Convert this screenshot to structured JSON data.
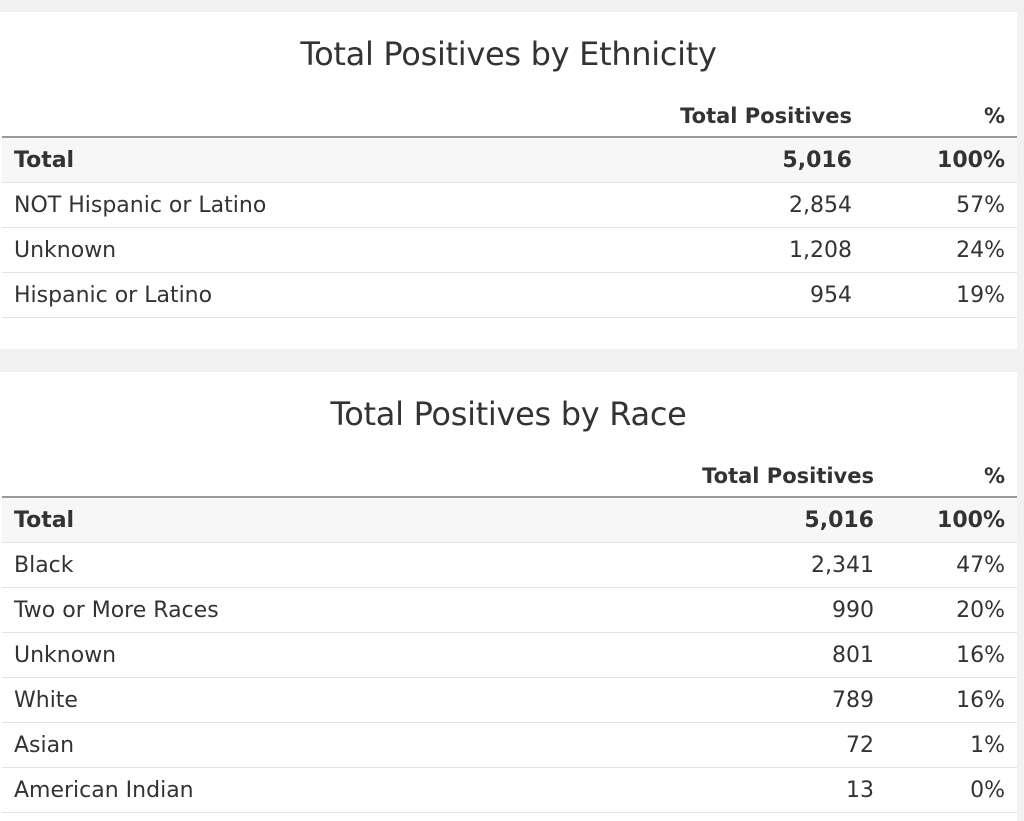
{
  "ethnicity": {
    "title": "Total Positives by Ethnicity",
    "headers": {
      "label": "",
      "count": "Total Positives",
      "pct": "%"
    },
    "rows": [
      {
        "label": "Total",
        "count": "5,016",
        "pct": "100%"
      },
      {
        "label": "NOT Hispanic or Latino",
        "count": "2,854",
        "pct": "57%"
      },
      {
        "label": "Unknown",
        "count": "1,208",
        "pct": "24%"
      },
      {
        "label": "Hispanic or Latino",
        "count": "954",
        "pct": "19%"
      }
    ]
  },
  "race": {
    "title": "Total Positives by Race",
    "headers": {
      "label": "",
      "count": "Total Positives",
      "pct": "%"
    },
    "rows": [
      {
        "label": "Total",
        "count": "5,016",
        "pct": "100%"
      },
      {
        "label": "Black",
        "count": "2,341",
        "pct": "47%"
      },
      {
        "label": "Two or More Races",
        "count": "990",
        "pct": "20%"
      },
      {
        "label": "Unknown",
        "count": "801",
        "pct": "16%"
      },
      {
        "label": "White",
        "count": "789",
        "pct": "16%"
      },
      {
        "label": "Asian",
        "count": "72",
        "pct": "1%"
      },
      {
        "label": "American Indian",
        "count": "13",
        "pct": "0%"
      }
    ]
  }
}
